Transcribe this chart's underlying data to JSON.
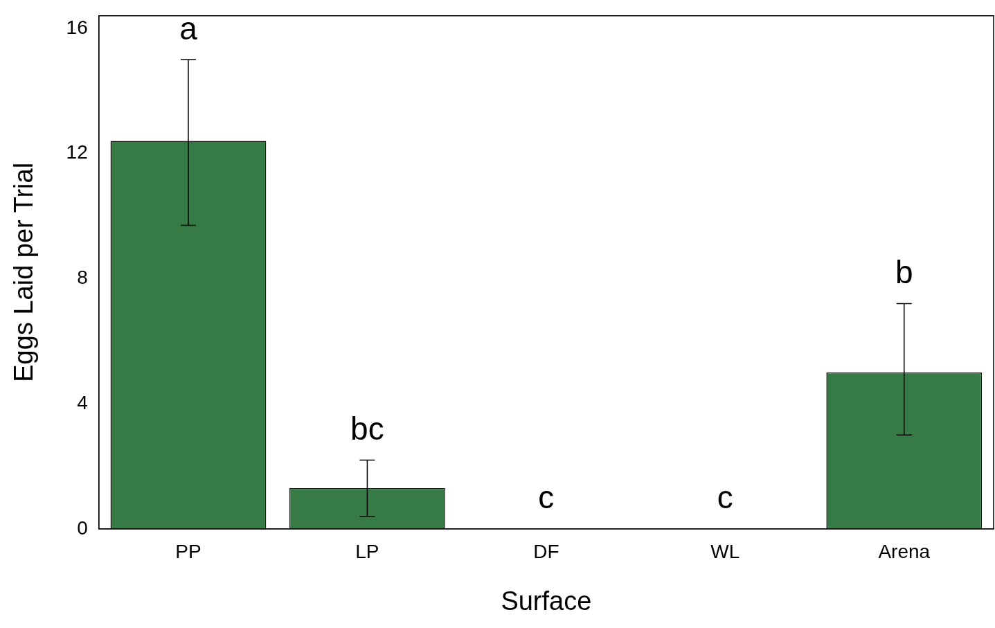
{
  "chart_data": {
    "type": "bar",
    "xlabel": "Surface",
    "ylabel": "Eggs Laid per Trial",
    "categories": [
      "PP",
      "LP",
      "DF",
      "WL",
      "Arena"
    ],
    "values": [
      12.4,
      1.3,
      0,
      0,
      5.0
    ],
    "errors": [
      [
        9.7,
        15.0
      ],
      [
        0.4,
        2.2
      ],
      null,
      null,
      [
        3.0,
        7.2
      ]
    ],
    "color": "#367b45",
    "ylim": [
      0,
      16.4
    ],
    "yticks": [
      0,
      4,
      8,
      12,
      16
    ],
    "grid": false,
    "legend": false,
    "annotations": [
      "a",
      "bc",
      "c",
      "c",
      "b"
    ]
  }
}
